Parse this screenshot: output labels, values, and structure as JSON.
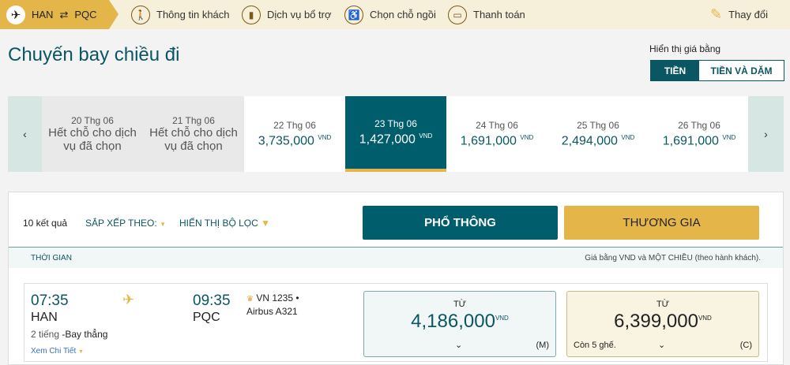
{
  "topbar": {
    "route": {
      "from": "HAN",
      "to": "PQC",
      "swap_icon": "⇄"
    },
    "steps": [
      {
        "label": "Thông tin khách",
        "icon": "passenger-icon"
      },
      {
        "label": "Dịch vụ bổ trợ",
        "icon": "baggage-icon"
      },
      {
        "label": "Chọn chỗ ngồi",
        "icon": "seat-icon"
      },
      {
        "label": "Thanh toán",
        "icon": "card-icon"
      }
    ],
    "change": "Thay đổi"
  },
  "title": "Chuyến bay chiều đi",
  "price_display": {
    "label": "Hiển thị giá bằng",
    "options": [
      "TIỀN",
      "TIỀN VÀ DẶM"
    ],
    "selected": "TIỀN"
  },
  "dates": [
    {
      "date": "20 Thg 06",
      "status": "Hết chỗ cho dịch vụ đã chọn"
    },
    {
      "date": "21 Thg 06",
      "status": "Hết chỗ cho dịch vụ đã chọn"
    },
    {
      "date": "22 Thg 06",
      "price": "3,735,000",
      "currency": "VND"
    },
    {
      "date": "23 Thg 06",
      "price": "1,427,000",
      "currency": "VND",
      "selected": true
    },
    {
      "date": "24 Thg 06",
      "price": "1,691,000",
      "currency": "VND"
    },
    {
      "date": "25 Thg 06",
      "price": "2,494,000",
      "currency": "VND"
    },
    {
      "date": "26 Thg 06",
      "price": "1,691,000",
      "currency": "VND"
    }
  ],
  "toolbar": {
    "results": "10 kết quả",
    "sort": "SẮP XẾP THEO:",
    "filter": "HIỂN THỊ BỘ LỌC"
  },
  "cabins": {
    "economy": "PHỔ THÔNG",
    "business": "THƯƠNG GIA"
  },
  "header": {
    "time": "THỜI GIAN",
    "note": "Giá bằng VND và MỘT CHIỀU (theo hành khách)."
  },
  "flight": {
    "dep_time": "07:35",
    "dep": "HAN",
    "arr_time": "09:35",
    "arr": "PQC",
    "duration": "2 tiếng",
    "type": "-Bay thẳng",
    "flight_no": "VN 1235 •",
    "aircraft": "Airbus A321",
    "details": "Xem Chi Tiết",
    "economy": {
      "from": "TỪ",
      "price": "4,186,000",
      "currency": "VND",
      "class": "(M)"
    },
    "business": {
      "from": "TỪ",
      "price": "6,399,000",
      "currency": "VND",
      "class": "(C)",
      "seats": "Còn 5 ghế."
    }
  },
  "colors": {
    "teal": "#005d6b",
    "gold": "#e4b64a"
  }
}
